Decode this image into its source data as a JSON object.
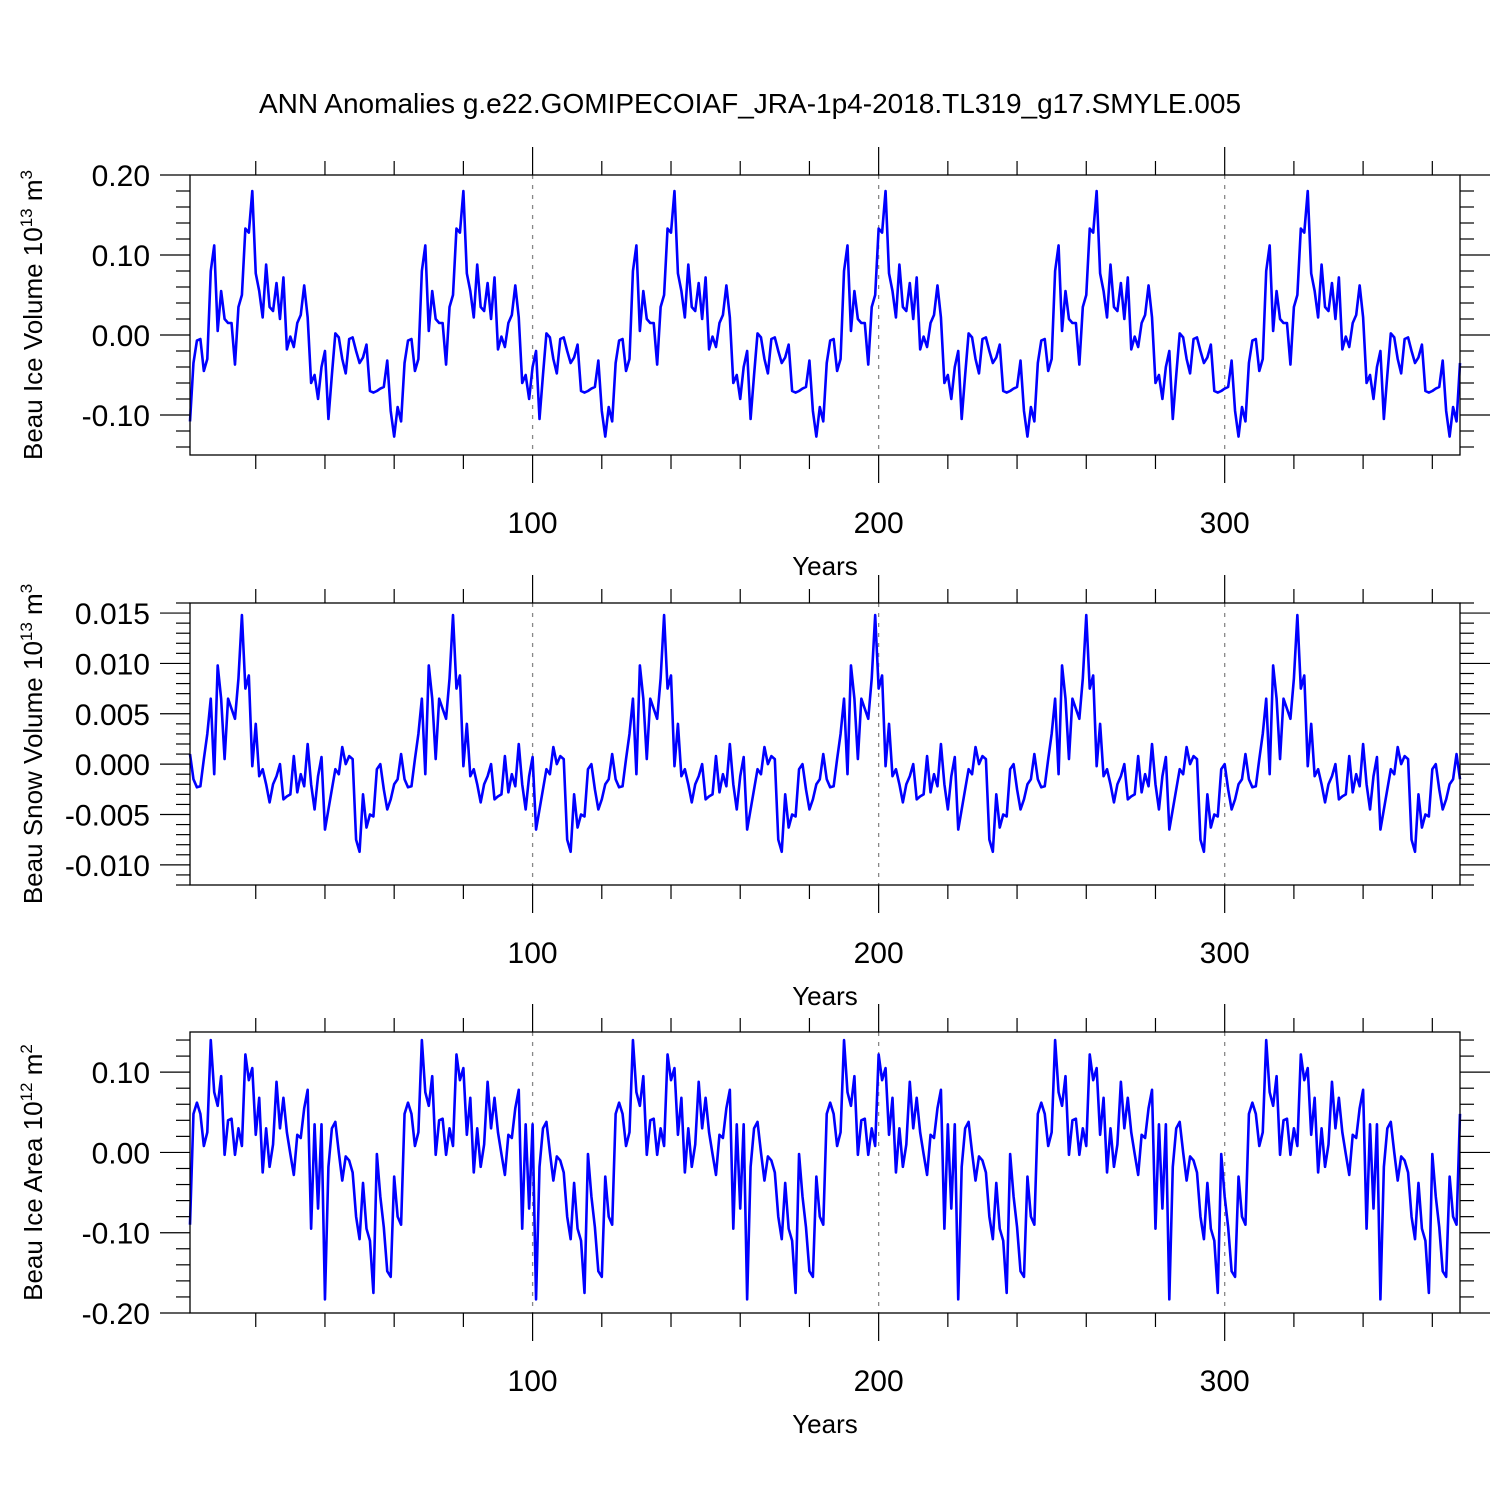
{
  "title": "ANN Anomalies g.e22.GOMIPECOIAF_JRA-1p4-2018.TL319_g17.SMYLE.005",
  "chart_data": [
    {
      "type": "line",
      "ylabel_main": "Beau Ice Volume 10",
      "ylabel_exp": "13",
      "ylabel_unit": " m",
      "ylabel_unit_exp": "3",
      "xlabel": "Years",
      "xlim": [
        1,
        368
      ],
      "ylim": [
        -0.15,
        0.2
      ],
      "yticks": [
        0.2,
        0.1,
        0.0,
        -0.1
      ],
      "ytick_labels": [
        "0.20",
        "0.10",
        "0.00",
        "-0.10"
      ],
      "xticks": [
        100,
        200,
        300
      ],
      "xtick_labels": [
        "100",
        "200",
        "300"
      ],
      "color": "#0000ff",
      "cycle_length": 61,
      "cycle_y": [
        -0.108,
        -0.035,
        -0.007,
        -0.005,
        -0.045,
        -0.03,
        0.08,
        0.112,
        0.005,
        0.055,
        0.02,
        0.015,
        0.015,
        -0.037,
        0.035,
        0.05,
        0.133,
        0.128,
        0.18,
        0.077,
        0.055,
        0.022,
        0.088,
        0.035,
        0.03,
        0.065,
        0.02,
        0.072,
        -0.018,
        -0.002,
        -0.015,
        0.015,
        0.025,
        0.062,
        0.022,
        -0.06,
        -0.05,
        -0.08,
        -0.04,
        -0.02,
        -0.105,
        -0.05,
        0.002,
        -0.003,
        -0.03,
        -0.048,
        -0.005,
        -0.003,
        -0.02,
        -0.035,
        -0.028,
        -0.012,
        -0.07,
        -0.072,
        -0.07,
        -0.067,
        -0.065,
        -0.032,
        -0.095,
        -0.127,
        -0.09
      ],
      "x": [
        1,
        2,
        3,
        4,
        5,
        6,
        7,
        8,
        9,
        10,
        11,
        12,
        13,
        14,
        15,
        16,
        17,
        18,
        19,
        20,
        21,
        22,
        23,
        24,
        25,
        26,
        27,
        28,
        29,
        30,
        31,
        32,
        33,
        34,
        35,
        36,
        37,
        38,
        39,
        40,
        41,
        42,
        43,
        44,
        45,
        46,
        47,
        48,
        49,
        50,
        51,
        52,
        53,
        54,
        55,
        56,
        57,
        58,
        59,
        60,
        61,
        62,
        63,
        64,
        65,
        66,
        67,
        68,
        69,
        70,
        71,
        72,
        73,
        74,
        75,
        76,
        77,
        78,
        79,
        80,
        81,
        82,
        83,
        84,
        85,
        86,
        87,
        88,
        89,
        90,
        91,
        92,
        93,
        94,
        95,
        96,
        97,
        98,
        99,
        100,
        101,
        102,
        103,
        104,
        105,
        106,
        107,
        108,
        109,
        110,
        111,
        112,
        113,
        114,
        115,
        116,
        117,
        118,
        119,
        120,
        121,
        122,
        123,
        124,
        125,
        126,
        127,
        128,
        129,
        130,
        131,
        132,
        133,
        134,
        135,
        136,
        137,
        138,
        139,
        140,
        141,
        142,
        143,
        144,
        145,
        146,
        147,
        148,
        149,
        150,
        151,
        152,
        153,
        154,
        155,
        156,
        157,
        158,
        159,
        160,
        161,
        162,
        163,
        164,
        165,
        166,
        167,
        168,
        169,
        170,
        171,
        172,
        173,
        174,
        175,
        176,
        177,
        178,
        179,
        180,
        181,
        182,
        183,
        184,
        185,
        186,
        187,
        188,
        189,
        190,
        191,
        192,
        193,
        194,
        195,
        196,
        197,
        198,
        199,
        200,
        201,
        202,
        203,
        204,
        205,
        206,
        207,
        208,
        209,
        210,
        211,
        212,
        213,
        214,
        215,
        216,
        217,
        218,
        219,
        220,
        221,
        222,
        223,
        224,
        225,
        226,
        227,
        228,
        229,
        230,
        231,
        232,
        233,
        234,
        235,
        236,
        237,
        238,
        239,
        240,
        241,
        242,
        243,
        244,
        245,
        246,
        247,
        248,
        249,
        250,
        251,
        252,
        253,
        254,
        255,
        256,
        257,
        258,
        259,
        260,
        261,
        262,
        263,
        264,
        265,
        266,
        267,
        268,
        269,
        270,
        271,
        272,
        273,
        274,
        275,
        276,
        277,
        278,
        279,
        280,
        281,
        282,
        283,
        284,
        285,
        286,
        287,
        288,
        289,
        290,
        291,
        292,
        293,
        294,
        295,
        296,
        297,
        298,
        299,
        300,
        301,
        302,
        303,
        304,
        305,
        306,
        307,
        308,
        309,
        310,
        311,
        312,
        313,
        314,
        315,
        316,
        317,
        318,
        319,
        320,
        321,
        322,
        323,
        324,
        325,
        326,
        327,
        328,
        329,
        330,
        331,
        332,
        333,
        334,
        335,
        336,
        337,
        338,
        339,
        340,
        341,
        342,
        343,
        344,
        345,
        346,
        347,
        348,
        349,
        350,
        351,
        352,
        353,
        354,
        355,
        356,
        357,
        358,
        359,
        360,
        361,
        362,
        363,
        364,
        365,
        366,
        367,
        368
      ]
    },
    {
      "type": "line",
      "ylabel_main": "Beau Snow Volume 10",
      "ylabel_exp": "13",
      "ylabel_unit": " m",
      "ylabel_unit_exp": "3",
      "xlabel": "Years",
      "xlim": [
        1,
        368
      ],
      "ylim": [
        -0.012,
        0.016
      ],
      "yticks": [
        0.015,
        0.01,
        0.005,
        0.0,
        -0.005,
        -0.01
      ],
      "ytick_labels": [
        "0.015",
        "0.010",
        "0.005",
        "0.000",
        "-0.005",
        "-0.010"
      ],
      "xticks": [
        100,
        200,
        300
      ],
      "xtick_labels": [
        "100",
        "200",
        "300"
      ],
      "color": "#0000ff",
      "cycle_length": 61,
      "cycle_y": [
        0.001,
        -0.0015,
        -0.0023,
        -0.0022,
        0.0005,
        0.003,
        0.0065,
        -0.001,
        0.0098,
        0.0065,
        0.0005,
        0.0065,
        0.0055,
        0.0045,
        0.0085,
        0.0148,
        0.0075,
        0.0088,
        -0.0002,
        0.004,
        -0.0012,
        -0.0005,
        -0.002,
        -0.0038,
        -0.002,
        -0.0012,
        0.0,
        -0.0035,
        -0.0032,
        -0.003,
        0.0008,
        -0.0028,
        -0.001,
        -0.0022,
        0.002,
        -0.002,
        -0.0045,
        -0.0012,
        0.0007,
        -0.0065,
        -0.0045,
        -0.0025,
        -0.0005,
        -0.001,
        0.0017,
        0.0,
        0.0008,
        0.0005,
        -0.0075,
        -0.0087,
        -0.003,
        -0.0063,
        -0.005,
        -0.0052,
        -0.0005,
        0.0,
        -0.0025,
        -0.0045,
        -0.0035,
        -0.002,
        -0.0015
      ],
      "x": [
        1,
        2,
        3,
        4,
        5,
        6,
        7,
        8,
        9,
        10,
        11,
        12,
        13,
        14,
        15,
        16,
        17,
        18,
        19,
        20,
        21,
        22,
        23,
        24,
        25,
        26,
        27,
        28,
        29,
        30,
        31,
        32,
        33,
        34,
        35,
        36,
        37,
        38,
        39,
        40,
        41,
        42,
        43,
        44,
        45,
        46,
        47,
        48,
        49,
        50,
        51,
        52,
        53,
        54,
        55,
        56,
        57,
        58,
        59,
        60,
        61,
        62,
        63,
        64,
        65,
        66,
        67,
        68,
        69,
        70,
        71,
        72,
        73,
        74,
        75,
        76,
        77,
        78,
        79,
        80,
        81,
        82,
        83,
        84,
        85,
        86,
        87,
        88,
        89,
        90,
        91,
        92,
        93,
        94,
        95,
        96,
        97,
        98,
        99,
        100,
        101,
        102,
        103,
        104,
        105,
        106,
        107,
        108,
        109,
        110,
        111,
        112,
        113,
        114,
        115,
        116,
        117,
        118,
        119,
        120,
        121,
        122,
        123,
        124,
        125,
        126,
        127,
        128,
        129,
        130,
        131,
        132,
        133,
        134,
        135,
        136,
        137,
        138,
        139,
        140,
        141,
        142,
        143,
        144,
        145,
        146,
        147,
        148,
        149,
        150,
        151,
        152,
        153,
        154,
        155,
        156,
        157,
        158,
        159,
        160,
        161,
        162,
        163,
        164,
        165,
        166,
        167,
        168,
        169,
        170,
        171,
        172,
        173,
        174,
        175,
        176,
        177,
        178,
        179,
        180,
        181,
        182,
        183,
        184,
        185,
        186,
        187,
        188,
        189,
        190,
        191,
        192,
        193,
        194,
        195,
        196,
        197,
        198,
        199,
        200,
        201,
        202,
        203,
        204,
        205,
        206,
        207,
        208,
        209,
        210,
        211,
        212,
        213,
        214,
        215,
        216,
        217,
        218,
        219,
        220,
        221,
        222,
        223,
        224,
        225,
        226,
        227,
        228,
        229,
        230,
        231,
        232,
        233,
        234,
        235,
        236,
        237,
        238,
        239,
        240,
        241,
        242,
        243,
        244,
        245,
        246,
        247,
        248,
        249,
        250,
        251,
        252,
        253,
        254,
        255,
        256,
        257,
        258,
        259,
        260,
        261,
        262,
        263,
        264,
        265,
        266,
        267,
        268,
        269,
        270,
        271,
        272,
        273,
        274,
        275,
        276,
        277,
        278,
        279,
        280,
        281,
        282,
        283,
        284,
        285,
        286,
        287,
        288,
        289,
        290,
        291,
        292,
        293,
        294,
        295,
        296,
        297,
        298,
        299,
        300,
        301,
        302,
        303,
        304,
        305,
        306,
        307,
        308,
        309,
        310,
        311,
        312,
        313,
        314,
        315,
        316,
        317,
        318,
        319,
        320,
        321,
        322,
        323,
        324,
        325,
        326,
        327,
        328,
        329,
        330,
        331,
        332,
        333,
        334,
        335,
        336,
        337,
        338,
        339,
        340,
        341,
        342,
        343,
        344,
        345,
        346,
        347,
        348,
        349,
        350,
        351,
        352,
        353,
        354,
        355,
        356,
        357,
        358,
        359,
        360,
        361,
        362,
        363,
        364,
        365,
        366,
        367,
        368
      ]
    },
    {
      "type": "line",
      "ylabel_main": "Beau Ice Area 10",
      "ylabel_exp": "12",
      "ylabel_unit": " m",
      "ylabel_unit_exp": "2",
      "xlabel": "Years",
      "xlim": [
        1,
        368
      ],
      "ylim": [
        -0.2,
        0.15
      ],
      "yticks": [
        0.1,
        0.0,
        -0.1,
        -0.2
      ],
      "ytick_labels": [
        "0.10",
        "0.00",
        "-0.10",
        "-0.20"
      ],
      "xticks": [
        100,
        200,
        300
      ],
      "xtick_labels": [
        "100",
        "200",
        "300"
      ],
      "color": "#0000ff",
      "cycle_length": 61,
      "cycle_y": [
        -0.09,
        0.048,
        0.062,
        0.048,
        0.008,
        0.025,
        0.14,
        0.075,
        0.058,
        0.095,
        -0.003,
        0.04,
        0.042,
        -0.003,
        0.03,
        0.008,
        0.122,
        0.09,
        0.105,
        0.022,
        0.068,
        -0.025,
        0.03,
        -0.018,
        0.01,
        0.088,
        0.03,
        0.068,
        0.025,
        -0.002,
        -0.028,
        0.022,
        0.018,
        0.055,
        0.078,
        -0.095,
        0.035,
        -0.07,
        0.035,
        -0.183,
        -0.018,
        0.03,
        0.038,
        0.0,
        -0.035,
        -0.005,
        -0.01,
        -0.025,
        -0.08,
        -0.108,
        -0.038,
        -0.095,
        -0.11,
        -0.175,
        -0.002,
        -0.055,
        -0.093,
        -0.148,
        -0.155,
        -0.03,
        -0.08
      ],
      "x": [
        1,
        2,
        3,
        4,
        5,
        6,
        7,
        8,
        9,
        10,
        11,
        12,
        13,
        14,
        15,
        16,
        17,
        18,
        19,
        20,
        21,
        22,
        23,
        24,
        25,
        26,
        27,
        28,
        29,
        30,
        31,
        32,
        33,
        34,
        35,
        36,
        37,
        38,
        39,
        40,
        41,
        42,
        43,
        44,
        45,
        46,
        47,
        48,
        49,
        50,
        51,
        52,
        53,
        54,
        55,
        56,
        57,
        58,
        59,
        60,
        61,
        62,
        63,
        64,
        65,
        66,
        67,
        68,
        69,
        70,
        71,
        72,
        73,
        74,
        75,
        76,
        77,
        78,
        79,
        80,
        81,
        82,
        83,
        84,
        85,
        86,
        87,
        88,
        89,
        90,
        91,
        92,
        93,
        94,
        95,
        96,
        97,
        98,
        99,
        100,
        101,
        102,
        103,
        104,
        105,
        106,
        107,
        108,
        109,
        110,
        111,
        112,
        113,
        114,
        115,
        116,
        117,
        118,
        119,
        120,
        121,
        122,
        123,
        124,
        125,
        126,
        127,
        128,
        129,
        130,
        131,
        132,
        133,
        134,
        135,
        136,
        137,
        138,
        139,
        140,
        141,
        142,
        143,
        144,
        145,
        146,
        147,
        148,
        149,
        150,
        151,
        152,
        153,
        154,
        155,
        156,
        157,
        158,
        159,
        160,
        161,
        162,
        163,
        164,
        165,
        166,
        167,
        168,
        169,
        170,
        171,
        172,
        173,
        174,
        175,
        176,
        177,
        178,
        179,
        180,
        181,
        182,
        183,
        184,
        185,
        186,
        187,
        188,
        189,
        190,
        191,
        192,
        193,
        194,
        195,
        196,
        197,
        198,
        199,
        200,
        201,
        202,
        203,
        204,
        205,
        206,
        207,
        208,
        209,
        210,
        211,
        212,
        213,
        214,
        215,
        216,
        217,
        218,
        219,
        220,
        221,
        222,
        223,
        224,
        225,
        226,
        227,
        228,
        229,
        230,
        231,
        232,
        233,
        234,
        235,
        236,
        237,
        238,
        239,
        240,
        241,
        242,
        243,
        244,
        245,
        246,
        247,
        248,
        249,
        250,
        251,
        252,
        253,
        254,
        255,
        256,
        257,
        258,
        259,
        260,
        261,
        262,
        263,
        264,
        265,
        266,
        267,
        268,
        269,
        270,
        271,
        272,
        273,
        274,
        275,
        276,
        277,
        278,
        279,
        280,
        281,
        282,
        283,
        284,
        285,
        286,
        287,
        288,
        289,
        290,
        291,
        292,
        293,
        294,
        295,
        296,
        297,
        298,
        299,
        300,
        301,
        302,
        303,
        304,
        305,
        306,
        307,
        308,
        309,
        310,
        311,
        312,
        313,
        314,
        315,
        316,
        317,
        318,
        319,
        320,
        321,
        322,
        323,
        324,
        325,
        326,
        327,
        328,
        329,
        330,
        331,
        332,
        333,
        334,
        335,
        336,
        337,
        338,
        339,
        340,
        341,
        342,
        343,
        344,
        345,
        346,
        347,
        348,
        349,
        350,
        351,
        352,
        353,
        354,
        355,
        356,
        357,
        358,
        359,
        360,
        361,
        362,
        363,
        364,
        365,
        366,
        367,
        368
      ]
    }
  ]
}
